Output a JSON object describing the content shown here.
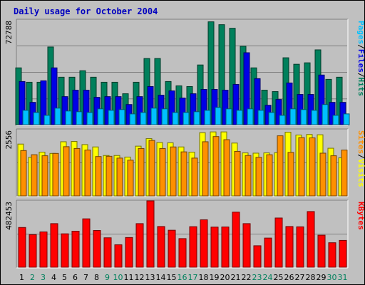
{
  "title": "Daily usage for October 2004",
  "chart_data": {
    "type": "bar",
    "title": "Daily usage for October 2004",
    "categories": [
      "1",
      "2",
      "3",
      "4",
      "5",
      "6",
      "7",
      "8",
      "9",
      "10",
      "11",
      "12",
      "13",
      "14",
      "15",
      "16",
      "17",
      "18",
      "19",
      "20",
      "21",
      "22",
      "23",
      "24",
      "25",
      "26",
      "27",
      "28",
      "29",
      "30",
      "31"
    ],
    "weekend_days": [
      2,
      3,
      9,
      10,
      16,
      17,
      23,
      24,
      30,
      31
    ],
    "colors": {
      "background": "#c0c0c0",
      "title": "#0000c0",
      "hits": "#00805c",
      "files": "#0000e6",
      "pages": "#00c0ff",
      "visits": "#ffff00",
      "sites": "#ff9000",
      "kbytes": "#ff0000",
      "grid": "#808080",
      "weekday_label": "#000000",
      "weekend_label": "#00805c"
    },
    "panels": [
      {
        "name": "hits-files-pages",
        "scale_max_label": "72788",
        "ymax": 72788,
        "legend": [
          {
            "text": "Hits",
            "color": "#00805c"
          },
          {
            "text": "/",
            "color": "#000000"
          },
          {
            "text": "Files",
            "color": "#0000e6"
          },
          {
            "text": "/",
            "color": "#000000"
          },
          {
            "text": "Pages",
            "color": "#00c0ff"
          }
        ],
        "series": [
          {
            "name": "Hits",
            "color": "#00805c",
            "values": [
              39500,
              29500,
              29500,
              54000,
              33000,
              33000,
              37500,
              33000,
              29500,
              29500,
              21500,
              29500,
              46000,
              46000,
              30000,
              27000,
              26500,
              41500,
              71500,
              69500,
              67000,
              54500,
              39500,
              24000,
              23000,
              46500,
              42000,
              43000,
              52000,
              31500,
              33000
            ]
          },
          {
            "name": "Files",
            "color": "#0000e6",
            "values": [
              30000,
              15500,
              30500,
              39500,
              19500,
              24000,
              24000,
              19000,
              19500,
              19500,
              14000,
              19500,
              26500,
              20500,
              23500,
              18500,
              21500,
              24500,
              24500,
              24000,
              28000,
              50000,
              32000,
              13500,
              17500,
              29000,
              21000,
              21000,
              34500,
              15500,
              15500
            ]
          },
          {
            "name": "Pages",
            "color": "#00c0ff",
            "values": [
              10000,
              8500,
              6500,
              11500,
              9500,
              9000,
              8500,
              11000,
              10000,
              10500,
              7500,
              8500,
              11500,
              11000,
              8500,
              8500,
              9000,
              10000,
              12000,
              11000,
              10000,
              11000,
              10000,
              8500,
              6500,
              11000,
              10500,
              10000,
              14000,
              6500,
              7500
            ]
          }
        ]
      },
      {
        "name": "visits-sites",
        "scale_max_label": "2556",
        "ymax": 2556,
        "legend": [
          {
            "text": "Visits",
            "color": "#ffff00"
          },
          {
            "text": "/",
            "color": "#000000"
          },
          {
            "text": "Sites",
            "color": "#ff9000"
          }
        ],
        "series": [
          {
            "name": "Visits",
            "color": "#ffff00",
            "values": [
              2000,
              1490,
              1690,
              1640,
              2090,
              2100,
              1980,
              1890,
              1560,
              1560,
              1500,
              1920,
              2210,
              2060,
              2050,
              1890,
              1690,
              2440,
              2470,
              2470,
              2040,
              1660,
              1650,
              1660,
              1670,
              2460,
              2350,
              2370,
              2360,
              1840,
              1470
            ]
          },
          {
            "name": "Sites",
            "color": "#ff9000",
            "values": [
              1750,
              1590,
              1550,
              1640,
              1900,
              1830,
              1770,
              1520,
              1530,
              1460,
              1380,
              1830,
              2140,
              1830,
              1890,
              1700,
              1460,
              2090,
              2290,
              2170,
              1720,
              1560,
              1490,
              1590,
              2320,
              1680,
              2250,
              2240,
              1650,
              1550,
              1770
            ]
          }
        ]
      },
      {
        "name": "kbytes",
        "scale_max_label": "482453",
        "ymax": 482453,
        "legend": [
          {
            "text": "KBytes",
            "color": "#ff0000"
          }
        ],
        "series": [
          {
            "name": "KBytes",
            "color": "#ff0000",
            "values": [
              289000,
              237000,
              257000,
              317000,
              243000,
              262000,
              352000,
              267000,
              214000,
              163000,
              216000,
              317000,
              487000,
              296000,
              269000,
              208000,
              295000,
              345000,
              292000,
              293000,
              401000,
              317000,
              156000,
              212000,
              358000,
              296000,
              294000,
              405000,
              233000,
              178000,
              195000
            ]
          }
        ]
      }
    ]
  }
}
